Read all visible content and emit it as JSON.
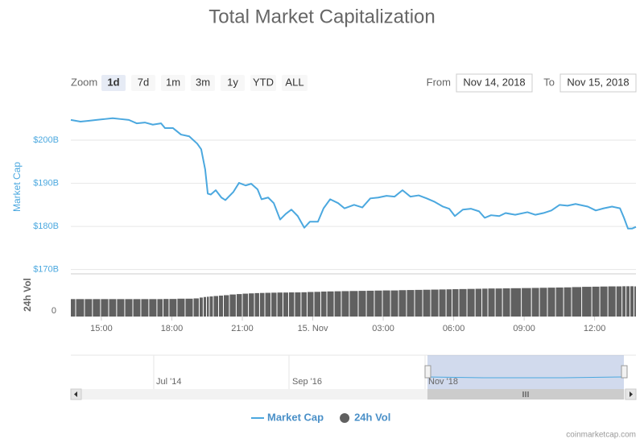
{
  "chart_data": {
    "type": "line",
    "title": "Total Market Capitalization",
    "range_selector": {
      "zoom_label": "Zoom",
      "buttons": [
        "1d",
        "7d",
        "1m",
        "3m",
        "1y",
        "YTD",
        "ALL"
      ],
      "selected": "1d",
      "from_label": "From",
      "from_value": "Nov 14, 2018",
      "to_label": "To",
      "to_value": "Nov 15, 2018"
    },
    "y_label": "Market Cap",
    "y2_label": "24h Vol",
    "x": [
      13.7,
      14.11,
      14.45,
      14.79,
      15.14,
      15.48,
      15.82,
      16.17,
      16.51,
      16.85,
      17.19,
      17.54,
      17.71,
      18.05,
      18.39,
      18.74,
      19.08,
      19.25,
      19.42,
      19.53,
      19.66,
      19.87,
      20.11,
      20.28,
      20.62,
      20.86,
      21.14,
      21.38,
      21.65,
      21.82,
      22.1,
      22.34,
      22.61,
      22.85,
      23.09,
      23.36,
      23.64,
      23.88,
      24.22,
      24.46,
      24.74,
      25.08,
      25.35,
      25.76,
      26.11,
      26.45,
      26.79,
      27.14,
      27.48,
      27.82,
      28.16,
      28.51,
      28.85,
      29.19,
      29.54,
      29.81,
      30.05,
      30.39,
      30.74,
      31.08,
      31.32,
      31.59,
      31.94,
      32.21,
      32.62,
      33.14,
      33.48,
      33.82,
      34.16,
      34.51,
      34.85,
      35.19,
      35.71,
      36.05,
      36.39,
      36.74,
      37.08,
      37.25,
      37.42,
      37.59,
      37.76
    ],
    "xlim": [
      13.7,
      37.76
    ],
    "xticks": [
      {
        "value": 15,
        "label": "15:00"
      },
      {
        "value": 18,
        "label": "18:00"
      },
      {
        "value": 21,
        "label": "21:00"
      },
      {
        "value": 24,
        "label": "15. Nov"
      },
      {
        "value": 27,
        "label": "03:00"
      },
      {
        "value": 30,
        "label": "06:00"
      },
      {
        "value": 33,
        "label": "09:00"
      },
      {
        "value": 36,
        "label": "12:00"
      }
    ],
    "ylim": [
      169,
      208.6
    ],
    "yticks": [
      {
        "value": 170,
        "label": "$170B"
      },
      {
        "value": 180,
        "label": "$180B"
      },
      {
        "value": 190,
        "label": "$190B"
      },
      {
        "value": 200,
        "label": "$200B"
      }
    ],
    "y2lim": [
      0,
      30
    ],
    "y2ticks": [
      0
    ],
    "grid": true,
    "series": [
      {
        "name": "Market Cap",
        "color": "#4ba8df",
        "type": "line",
        "values": [
          204.7,
          204.3,
          204.5,
          204.7,
          204.9,
          205.1,
          204.9,
          204.7,
          203.9,
          204.1,
          203.6,
          203.9,
          202.8,
          202.8,
          201.3,
          200.9,
          199.2,
          197.9,
          193.2,
          187.6,
          187.4,
          188.4,
          186.7,
          186.1,
          188.0,
          190.1,
          189.5,
          189.9,
          188.6,
          186.3,
          186.7,
          185.4,
          181.6,
          182.9,
          183.9,
          182.4,
          179.7,
          181.1,
          181.1,
          184.2,
          186.3,
          185.4,
          184.2,
          185.0,
          184.4,
          186.5,
          186.7,
          187.1,
          186.9,
          188.4,
          186.9,
          187.2,
          186.5,
          185.7,
          184.6,
          184.1,
          182.4,
          183.9,
          184.1,
          183.5,
          182.0,
          182.6,
          182.4,
          183.1,
          182.7,
          183.3,
          182.7,
          183.1,
          183.7,
          185.0,
          184.8,
          185.2,
          184.6,
          183.7,
          184.2,
          184.6,
          184.2,
          182.0,
          179.5,
          179.5,
          179.9
        ]
      },
      {
        "name": "24h Vol",
        "color": "#606060",
        "type": "bar",
        "axis": "y2",
        "values": [
          12.5,
          12.5,
          12.5,
          12.5,
          12.5,
          12.5,
          12.5,
          12.5,
          12.5,
          12.5,
          12.5,
          12.5,
          12.6,
          12.6,
          12.8,
          12.8,
          13.0,
          13.6,
          14.0,
          14.2,
          14.4,
          14.7,
          15.0,
          15.3,
          15.8,
          16.1,
          16.4,
          16.6,
          16.8,
          16.9,
          17.0,
          17.1,
          17.2,
          17.2,
          17.3,
          17.3,
          17.4,
          17.6,
          17.7,
          17.9,
          18.0,
          18.1,
          18.2,
          18.3,
          18.4,
          18.5,
          18.6,
          18.7,
          18.7,
          18.9,
          19.0,
          19.1,
          19.2,
          19.3,
          19.4,
          19.5,
          19.6,
          19.7,
          19.8,
          19.9,
          20.0,
          20.1,
          20.1,
          20.2,
          20.3,
          20.4,
          20.5,
          20.6,
          20.7,
          20.8,
          20.9,
          21.1,
          21.3,
          21.4,
          21.5,
          21.6,
          21.6,
          21.7,
          21.7,
          21.7,
          21.6
        ]
      }
    ],
    "navigator_labels": [
      "Jul '14",
      "Sep '16",
      "Nov '18"
    ],
    "credits": "coinmarketcap.com"
  }
}
